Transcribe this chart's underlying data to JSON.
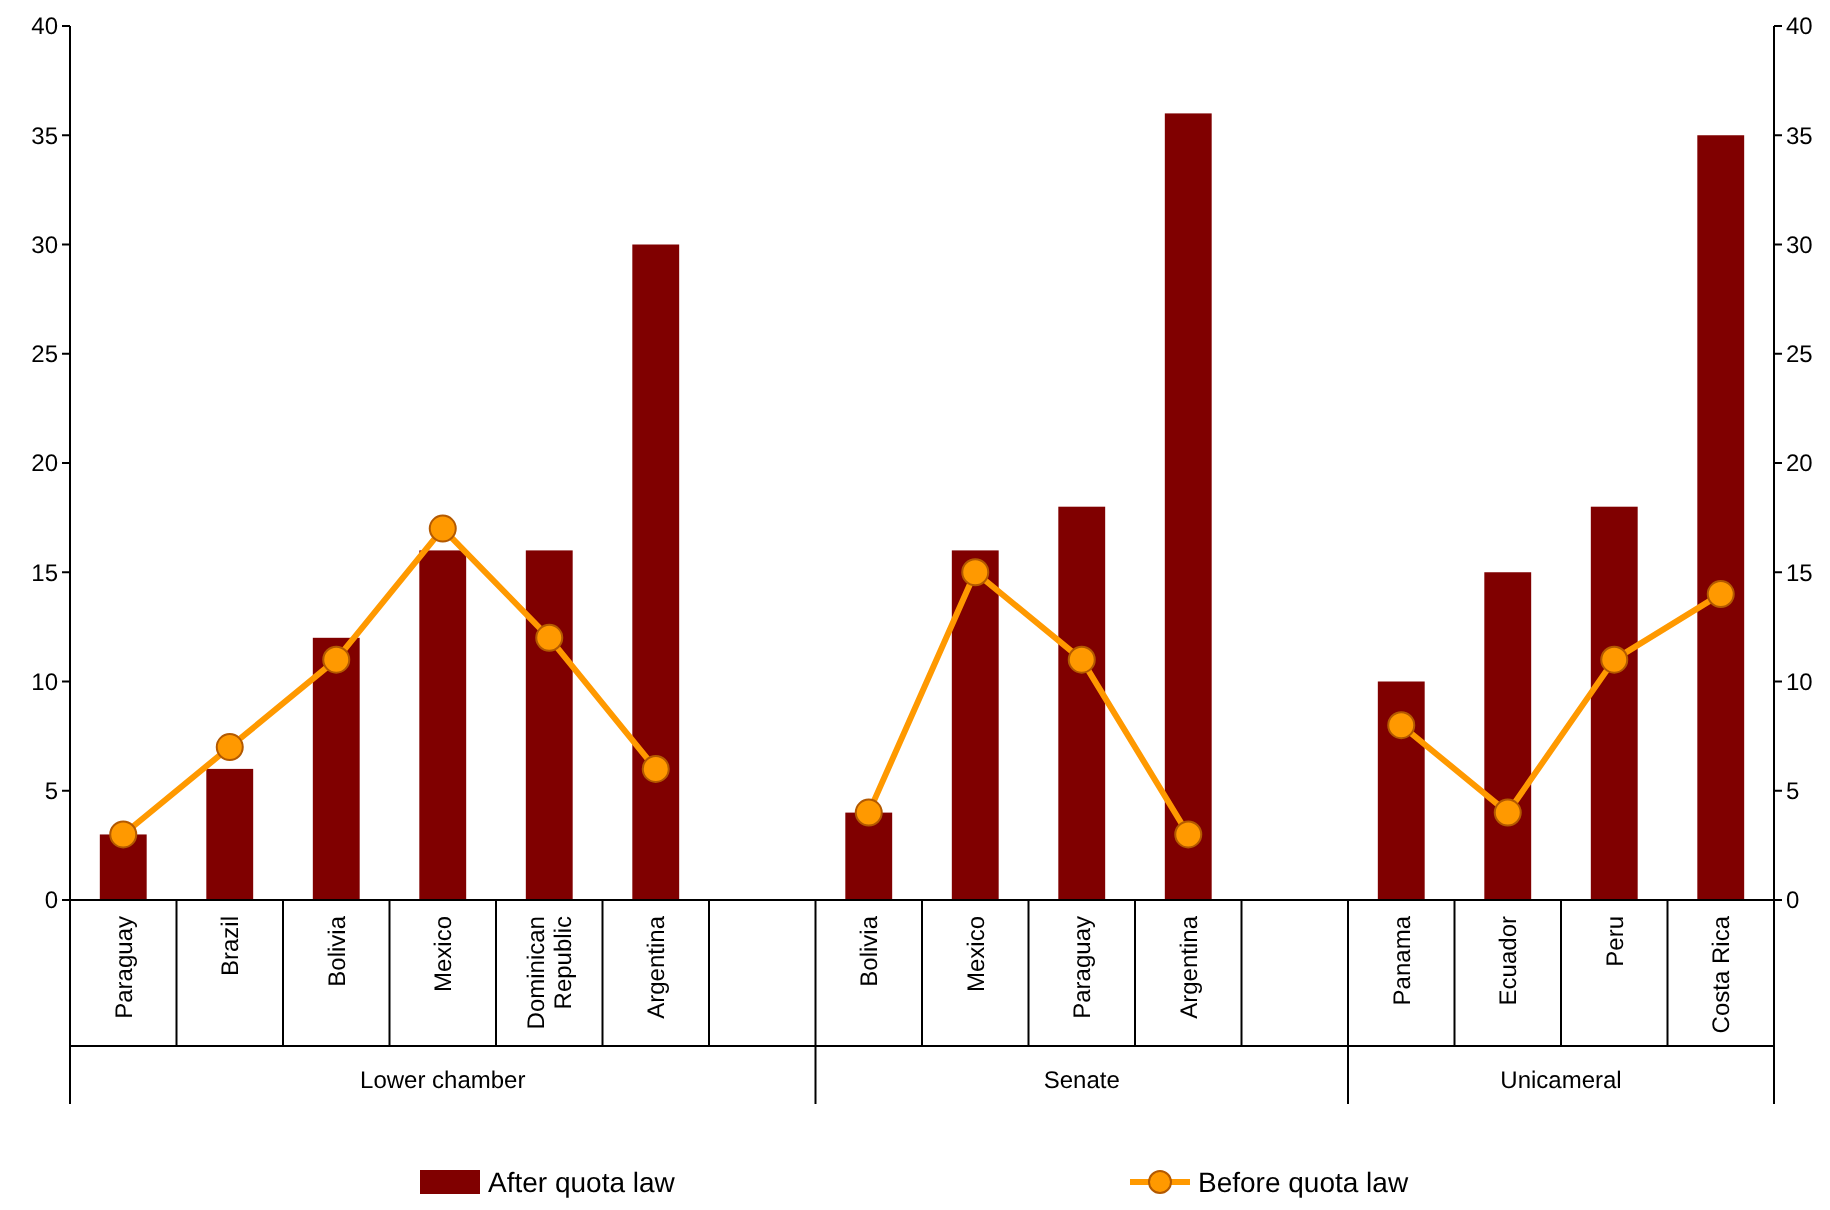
{
  "chart_data": {
    "type": "bar",
    "categories": [
      "Paraguay",
      "Brazil",
      "Bolivia",
      "Mexico",
      "Dominican Republic",
      "Argentina",
      null,
      "Bolivia",
      "Mexico",
      "Paraguay",
      "Argentina",
      null,
      "Panama",
      "Ecuador",
      "Peru",
      "Costa Rica"
    ],
    "series": [
      {
        "name": "After quota law",
        "color": "#800000",
        "values": [
          3,
          6,
          12,
          16,
          16,
          30,
          null,
          4,
          16,
          18,
          36,
          null,
          10,
          15,
          18,
          35
        ]
      },
      {
        "name": "Before quota law",
        "type": "line",
        "color": "#ff9900",
        "marker": "circle",
        "values": [
          3,
          7,
          11,
          17,
          12,
          6,
          null,
          4,
          15,
          11,
          3,
          null,
          8,
          4,
          11,
          14
        ]
      }
    ],
    "annotations": [
      "Lower chamber",
      "Senate",
      "Unicameral"
    ],
    "ylim": [
      0,
      40
    ],
    "yticks": [
      0,
      5,
      10,
      15,
      20,
      25,
      30,
      35,
      40
    ],
    "y2lim": [
      0,
      40
    ],
    "y2ticks": [
      0,
      5,
      10,
      15,
      20,
      25,
      30,
      35,
      40
    ],
    "legend": "bottom"
  }
}
